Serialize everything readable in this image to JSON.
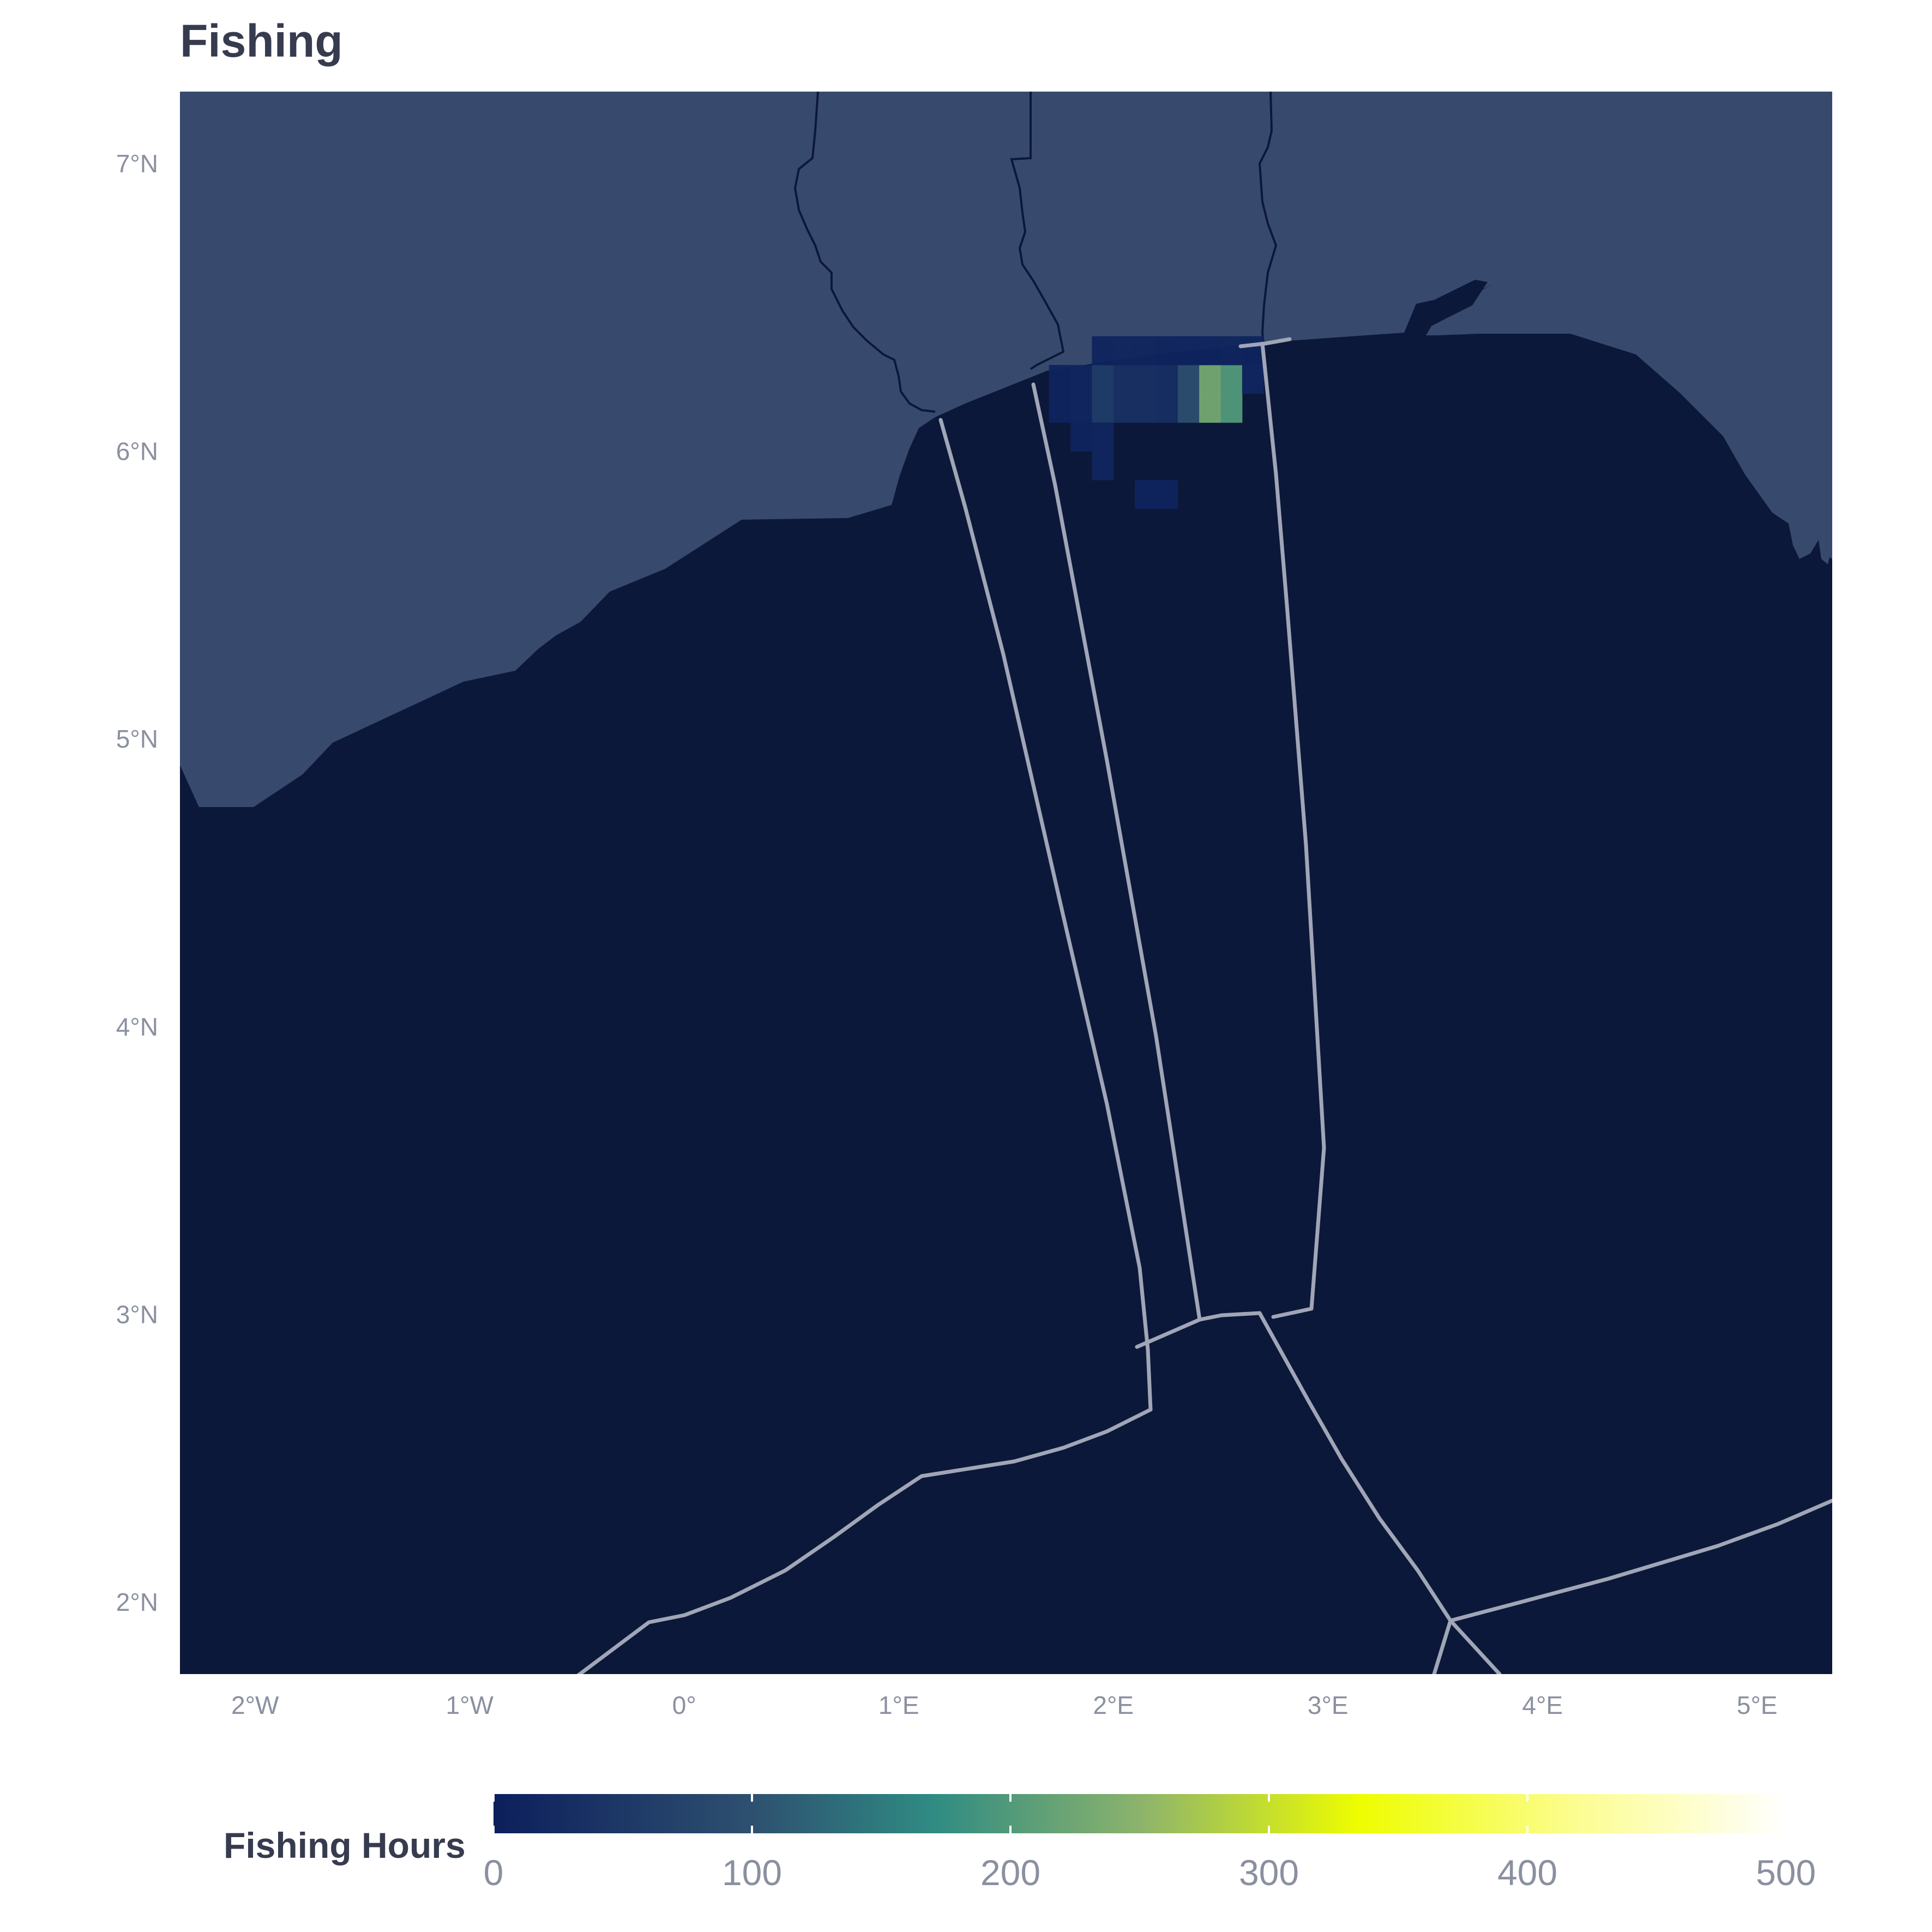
{
  "title": "Fishing",
  "colors": {
    "ocean": "#0c1839",
    "land": "#374a6d",
    "land_border": "#0c1839",
    "eez_line": "#a0a6b6",
    "axis_text": "#8a90a0",
    "title_text": "#363b4f"
  },
  "chart_data": {
    "type": "heatmap",
    "title": "Fishing",
    "x_extent": [
      -2.35,
      5.35
    ],
    "y_extent": [
      1.75,
      7.25
    ],
    "x_ticks": [
      {
        "value": -2,
        "label": "2°W"
      },
      {
        "value": -1,
        "label": "1°W"
      },
      {
        "value": 0,
        "label": "0°"
      },
      {
        "value": 1,
        "label": "1°E"
      },
      {
        "value": 2,
        "label": "2°E"
      },
      {
        "value": 3,
        "label": "3°E"
      },
      {
        "value": 4,
        "label": "4°E"
      },
      {
        "value": 5,
        "label": "5°E"
      }
    ],
    "y_ticks": [
      {
        "value": 7,
        "label": "7°N"
      },
      {
        "value": 6,
        "label": "6°N"
      },
      {
        "value": 5,
        "label": "5°N"
      },
      {
        "value": 4,
        "label": "4°N"
      },
      {
        "value": 3,
        "label": "3°N"
      },
      {
        "value": 2,
        "label": "2°N"
      }
    ],
    "cell_size_deg": 0.1,
    "cells": [
      {
        "lon": 1.7,
        "lat": 6.2,
        "hours": 10
      },
      {
        "lon": 1.8,
        "lat": 6.2,
        "hours": 15
      },
      {
        "lon": 1.9,
        "lat": 6.2,
        "hours": 60
      },
      {
        "lon": 2.0,
        "lat": 6.2,
        "hours": 35
      },
      {
        "lon": 2.1,
        "lat": 6.2,
        "hours": 35
      },
      {
        "lon": 2.2,
        "lat": 6.2,
        "hours": 30
      },
      {
        "lon": 2.3,
        "lat": 6.2,
        "hours": 95
      },
      {
        "lon": 2.4,
        "lat": 6.2,
        "hours": 230
      },
      {
        "lon": 2.5,
        "lat": 6.2,
        "hours": 200
      },
      {
        "lon": 2.6,
        "lat": 6.2,
        "hours": 15
      },
      {
        "lon": 1.7,
        "lat": 6.1,
        "hours": 10
      },
      {
        "lon": 1.8,
        "lat": 6.1,
        "hours": 15
      },
      {
        "lon": 1.9,
        "lat": 6.1,
        "hours": 60
      },
      {
        "lon": 2.0,
        "lat": 6.1,
        "hours": 35
      },
      {
        "lon": 2.1,
        "lat": 6.1,
        "hours": 35
      },
      {
        "lon": 2.2,
        "lat": 6.1,
        "hours": 30
      },
      {
        "lon": 2.3,
        "lat": 6.1,
        "hours": 95
      },
      {
        "lon": 2.4,
        "lat": 6.1,
        "hours": 230
      },
      {
        "lon": 2.5,
        "lat": 6.1,
        "hours": 200
      },
      {
        "lon": 1.8,
        "lat": 6.0,
        "hours": 10
      },
      {
        "lon": 1.9,
        "lat": 6.0,
        "hours": 15
      },
      {
        "lon": 1.9,
        "lat": 5.9,
        "hours": 15
      },
      {
        "lon": 2.1,
        "lat": 5.8,
        "hours": 8
      },
      {
        "lon": 2.2,
        "lat": 5.8,
        "hours": 8
      },
      {
        "lon": 1.9,
        "lat": 6.3,
        "hours": 10
      },
      {
        "lon": 2.0,
        "lat": 6.3,
        "hours": 12
      },
      {
        "lon": 2.1,
        "lat": 6.3,
        "hours": 12
      },
      {
        "lon": 2.2,
        "lat": 6.3,
        "hours": 10
      },
      {
        "lon": 2.3,
        "lat": 6.3,
        "hours": 8
      },
      {
        "lon": 2.4,
        "lat": 6.3,
        "hours": 10
      },
      {
        "lon": 2.5,
        "lat": 6.3,
        "hours": 12
      },
      {
        "lon": 2.6,
        "lat": 6.3,
        "hours": 10
      }
    ],
    "legend": {
      "title": "Fishing Hours",
      "min": 0,
      "max": 500,
      "breaks": [
        0,
        100,
        200,
        300,
        400,
        500
      ],
      "break_labels": [
        "0",
        "100",
        "200",
        "300",
        "400",
        "500"
      ],
      "gradient": [
        {
          "value": 0,
          "color": "#0c1f5c"
        },
        {
          "value": 100,
          "color": "#2e5070"
        },
        {
          "value": 170,
          "color": "#2f8b83"
        },
        {
          "value": 250,
          "color": "#8cb36c"
        },
        {
          "value": 335,
          "color": "#eefd00"
        },
        {
          "value": 420,
          "color": "#fcfd92"
        },
        {
          "value": 500,
          "color": "#ffffff"
        }
      ]
    }
  }
}
